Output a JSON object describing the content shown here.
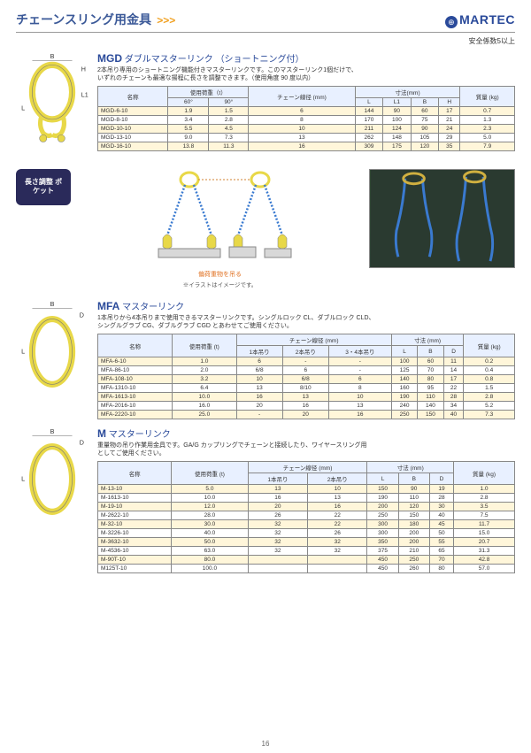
{
  "header": {
    "title": "チェーンスリング用金具",
    "arrows": ">>>",
    "brand": "MARTEC",
    "safety_note": "安全係数5以上"
  },
  "mgd": {
    "code": "MGD",
    "name": "ダブルマスターリンク",
    "paren": "（ショートニング付）",
    "desc1": "2本吊り専用のショートニング機能付きマスターリンクです。このマスターリンク1個だけで、",
    "desc2": "いずれのチェーンも最適な揚程に長さを調整できます。（使用角度 90 度以内）",
    "diagram_labels": {
      "B": "B",
      "H": "H",
      "L": "L",
      "L1": "L1"
    },
    "columns": {
      "name": "名称",
      "load": "使用荷重（t）",
      "a60": "60°",
      "a90": "90°",
      "chain": "チェーン線径\n(mm)",
      "dim": "寸法(mm)",
      "L": "L",
      "L1": "L1",
      "B": "B",
      "H": "H",
      "mass": "質量\n(kg)"
    },
    "rows": [
      {
        "name": "MGD-6-10",
        "a60": "1.9",
        "a90": "1.5",
        "chain": "6",
        "L": "144",
        "L1": "90",
        "B": "60",
        "H": "17",
        "mass": "0.7"
      },
      {
        "name": "MGD-8-10",
        "a60": "3.4",
        "a90": "2.8",
        "chain": "8",
        "L": "170",
        "L1": "100",
        "B": "75",
        "H": "21",
        "mass": "1.3"
      },
      {
        "name": "MGD-10-10",
        "a60": "5.5",
        "a90": "4.5",
        "chain": "10",
        "L": "211",
        "L1": "124",
        "B": "90",
        "H": "24",
        "mass": "2.3"
      },
      {
        "name": "MGD-13-10",
        "a60": "9.0",
        "a90": "7.3",
        "chain": "13",
        "L": "262",
        "L1": "148",
        "B": "105",
        "H": "29",
        "mass": "5.0"
      },
      {
        "name": "MGD-16-10",
        "a60": "13.8",
        "a90": "11.3",
        "chain": "16",
        "L": "309",
        "L1": "175",
        "B": "120",
        "H": "35",
        "mass": "7.9"
      }
    ]
  },
  "pocket": {
    "bubble": "長さ調整\nポケット",
    "caption": "偏荷重物を吊る",
    "note": "※イラストはイメージです。"
  },
  "mfa": {
    "code": "MFA",
    "name": "マスターリンク",
    "desc1": "1本吊りから4本吊りまで使用できるマスターリンクです。シングルロック CL、ダブルロック CLD、",
    "desc2": "シングルグラブ CG、ダブルグラブ CGD とあわせてご使用ください。",
    "diagram_labels": {
      "B": "B",
      "D": "D",
      "L": "L"
    },
    "columns": {
      "name": "名称",
      "load": "使用荷重\n(t)",
      "chain": "チェーン線径 (mm)",
      "c1": "1本吊り",
      "c2": "2本吊り",
      "c34": "3・4本吊り",
      "dim": "寸法 (mm)",
      "L": "L",
      "B": "B",
      "D": "D",
      "mass": "質量\n(kg)"
    },
    "rows": [
      {
        "name": "MFA-6-10",
        "load": "1.0",
        "c1": "6",
        "c2": "-",
        "c34": "-",
        "L": "100",
        "B": "60",
        "D": "11",
        "mass": "0.2"
      },
      {
        "name": "MFA-86-10",
        "load": "2.0",
        "c1": "6/8",
        "c2": "6",
        "c34": "-",
        "L": "125",
        "B": "70",
        "D": "14",
        "mass": "0.4"
      },
      {
        "name": "MFA-108-10",
        "load": "3.2",
        "c1": "10",
        "c2": "6/8",
        "c34": "6",
        "L": "140",
        "B": "80",
        "D": "17",
        "mass": "0.8"
      },
      {
        "name": "MFA-1310-10",
        "load": "6.4",
        "c1": "13",
        "c2": "8/10",
        "c34": "8",
        "L": "160",
        "B": "95",
        "D": "22",
        "mass": "1.5"
      },
      {
        "name": "MFA-1613-10",
        "load": "10.0",
        "c1": "16",
        "c2": "13",
        "c34": "10",
        "L": "190",
        "B": "110",
        "D": "28",
        "mass": "2.8"
      },
      {
        "name": "MFA-2016-10",
        "load": "16.0",
        "c1": "20",
        "c2": "16",
        "c34": "13",
        "L": "240",
        "B": "140",
        "D": "34",
        "mass": "5.2"
      },
      {
        "name": "MFA-2220-10",
        "load": "25.0",
        "c1": "-",
        "c2": "20",
        "c34": "16",
        "L": "250",
        "B": "150",
        "D": "40",
        "mass": "7.3"
      }
    ]
  },
  "m": {
    "code": "M",
    "name": "マスターリンク",
    "desc1": "重量物の吊り作業用金具です。GA/G カップリングでチェーンと接続したり、ワイヤースリング用",
    "desc2": "としてご使用ください。",
    "diagram_labels": {
      "B": "B",
      "D": "D",
      "L": "L"
    },
    "columns": {
      "name": "名称",
      "load": "使用荷重\n(t)",
      "chain": "チェーン線径 (mm)",
      "c1": "1本吊り",
      "c2": "2本吊り",
      "dim": "寸法 (mm)",
      "L": "L",
      "B": "B",
      "D": "D",
      "mass": "質量\n(kg)"
    },
    "rows": [
      {
        "name": "M-13-10",
        "load": "5.0",
        "c1": "13",
        "c2": "10",
        "L": "150",
        "B": "90",
        "D": "19",
        "mass": "1.0"
      },
      {
        "name": "M-1613-10",
        "load": "10.0",
        "c1": "16",
        "c2": "13",
        "L": "190",
        "B": "110",
        "D": "28",
        "mass": "2.8"
      },
      {
        "name": "M-19-10",
        "load": "12.0",
        "c1": "20",
        "c2": "16",
        "L": "200",
        "B": "120",
        "D": "30",
        "mass": "3.5"
      },
      {
        "name": "M-2622-10",
        "load": "28.0",
        "c1": "26",
        "c2": "22",
        "L": "250",
        "B": "150",
        "D": "40",
        "mass": "7.5"
      },
      {
        "name": "M-32-10",
        "load": "30.0",
        "c1": "32",
        "c2": "22",
        "L": "300",
        "B": "180",
        "D": "45",
        "mass": "11.7"
      },
      {
        "name": "M-3226-10",
        "load": "40.0",
        "c1": "32",
        "c2": "26",
        "L": "300",
        "B": "200",
        "D": "50",
        "mass": "15.0"
      },
      {
        "name": "M-3632-10",
        "load": "50.0",
        "c1": "32",
        "c2": "32",
        "L": "350",
        "B": "200",
        "D": "55",
        "mass": "20.7"
      },
      {
        "name": "M-4536-10",
        "load": "63.0",
        "c1": "32",
        "c2": "32",
        "L": "375",
        "B": "210",
        "D": "65",
        "mass": "31.3"
      },
      {
        "name": "M-90T-10",
        "load": "80.0",
        "c1": "",
        "c2": "",
        "L": "450",
        "B": "250",
        "D": "70",
        "mass": "42.8"
      },
      {
        "name": "M125T-10",
        "load": "100.0",
        "c1": "",
        "c2": "",
        "L": "450",
        "B": "260",
        "D": "80",
        "mass": "57.0"
      }
    ]
  },
  "colors": {
    "header_blue": "#2a4a9a",
    "arrow_orange": "#f0a020",
    "band_yellow": "#fff6da",
    "th_bg": "#e8f0ff",
    "ring_color": "#e8d848",
    "bubble_bg": "#2a2a5a",
    "caption_orange": "#e07020"
  },
  "page_number": "16"
}
